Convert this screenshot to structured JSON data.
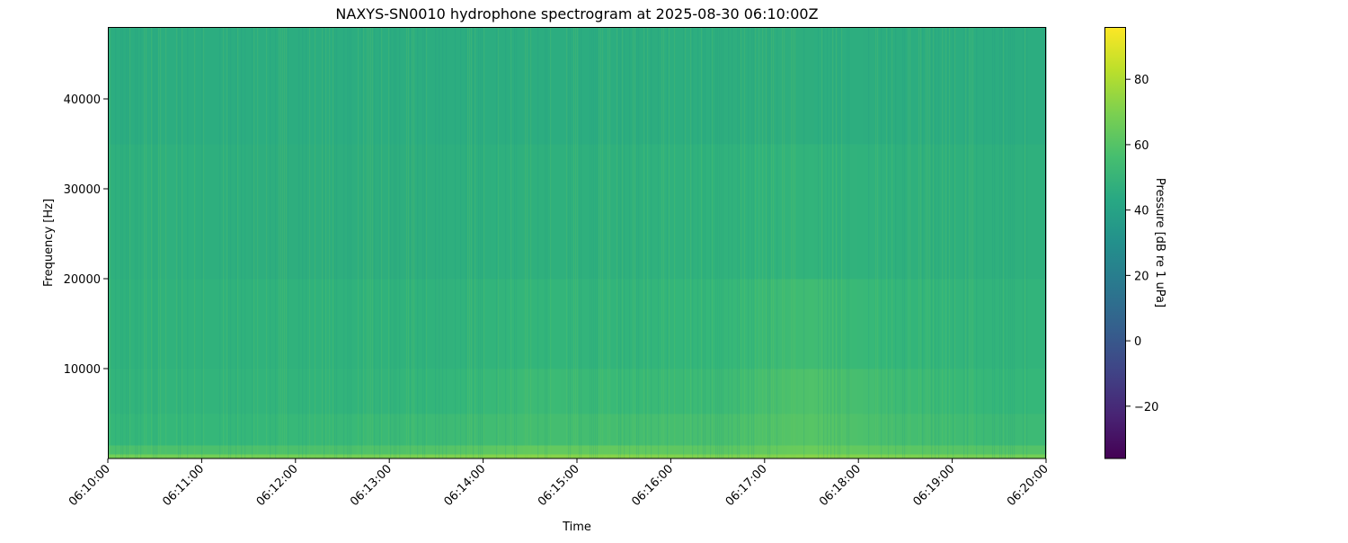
{
  "chart_data": {
    "type": "heatmap",
    "title": "NAXYS-SN0010 hydrophone spectrogram at 2025-08-30 06:10:00Z",
    "xlabel": "Time",
    "ylabel": "Frequency [Hz]",
    "xlim": [
      "06:10:00",
      "06:20:00"
    ],
    "ylim": [
      0,
      48000
    ],
    "x_ticks": [
      "06:10:00",
      "06:11:00",
      "06:12:00",
      "06:13:00",
      "06:14:00",
      "06:15:00",
      "06:16:00",
      "06:17:00",
      "06:18:00",
      "06:19:00",
      "06:20:00"
    ],
    "y_ticks": [
      10000,
      20000,
      30000,
      40000
    ],
    "y_tick_labels": [
      "10000",
      "20000",
      "30000",
      "40000"
    ],
    "colormap": "viridis",
    "colorbar": {
      "label": "Pressure [dB re 1 uPa]",
      "range": [
        -36,
        96
      ],
      "ticks": [
        -20,
        0,
        20,
        40,
        60,
        80
      ],
      "tick_labels": [
        "−20",
        "0",
        "20",
        "40",
        "60",
        "80"
      ]
    },
    "approx_levels_db": {
      "time_minutes": [
        0.5,
        1.5,
        2.5,
        3.5,
        4.5,
        5.5,
        6.5,
        7.5,
        8.5,
        9.5
      ],
      "freq_band_edges_hz": [
        0,
        500,
        1500,
        5000,
        10000,
        20000,
        35000,
        48000
      ],
      "values": [
        [
          68,
          68,
          68,
          70,
          72,
          72,
          70,
          72,
          70,
          68
        ],
        [
          58,
          58,
          58,
          60,
          64,
          64,
          62,
          66,
          62,
          60
        ],
        [
          52,
          52,
          53,
          54,
          56,
          56,
          57,
          61,
          56,
          54
        ],
        [
          50,
          50,
          50,
          51,
          54,
          53,
          54,
          59,
          54,
          52
        ],
        [
          49,
          49,
          49,
          49,
          51,
          50,
          52,
          55,
          51,
          50
        ],
        [
          48,
          47,
          47,
          47,
          48,
          48,
          49,
          50,
          48,
          48
        ],
        [
          46,
          46,
          46,
          46,
          46,
          46,
          47,
          47,
          46,
          46
        ]
      ]
    },
    "grid": false
  }
}
